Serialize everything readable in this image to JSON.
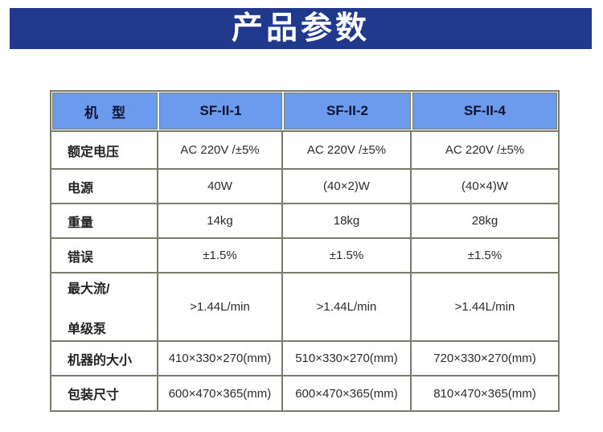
{
  "banner": {
    "title": "产品参数"
  },
  "table": {
    "columns": [
      "机　型",
      "SF-II-1",
      "SF-II-2",
      "SF-II-4"
    ],
    "rows": [
      {
        "label": "额定电压",
        "values": [
          "AC 220V /±5%",
          "AC 220V /±5%",
          "AC 220V /±5%"
        ]
      },
      {
        "label": "电源",
        "values": [
          "40W",
          "(40×2)W",
          "(40×4)W"
        ]
      },
      {
        "label": "重量",
        "values": [
          "14kg",
          "18kg",
          "28kg"
        ]
      },
      {
        "label": "错误",
        "values": [
          "±1.5%",
          "±1.5%",
          "±1.5%"
        ]
      },
      {
        "label": "最大流/单级泵",
        "label_lines": [
          "最大流/",
          "单级泵"
        ],
        "values": [
          ">1.44L/min",
          ">1.44L/min",
          ">1.44L/min"
        ]
      },
      {
        "label": "机器的大小",
        "values": [
          "410×330×270(mm)",
          "510×330×270(mm)",
          "720×330×270(mm)"
        ]
      },
      {
        "label": "包装尺寸",
        "values": [
          "600×470×365(mm)",
          "600×470×365(mm)",
          "810×470×365(mm)"
        ]
      }
    ]
  },
  "colors": {
    "banner_bg": "#21398c",
    "banner_text": "#ffffff",
    "header_bg": "#6c9aec",
    "border": "#7b7b6b"
  }
}
